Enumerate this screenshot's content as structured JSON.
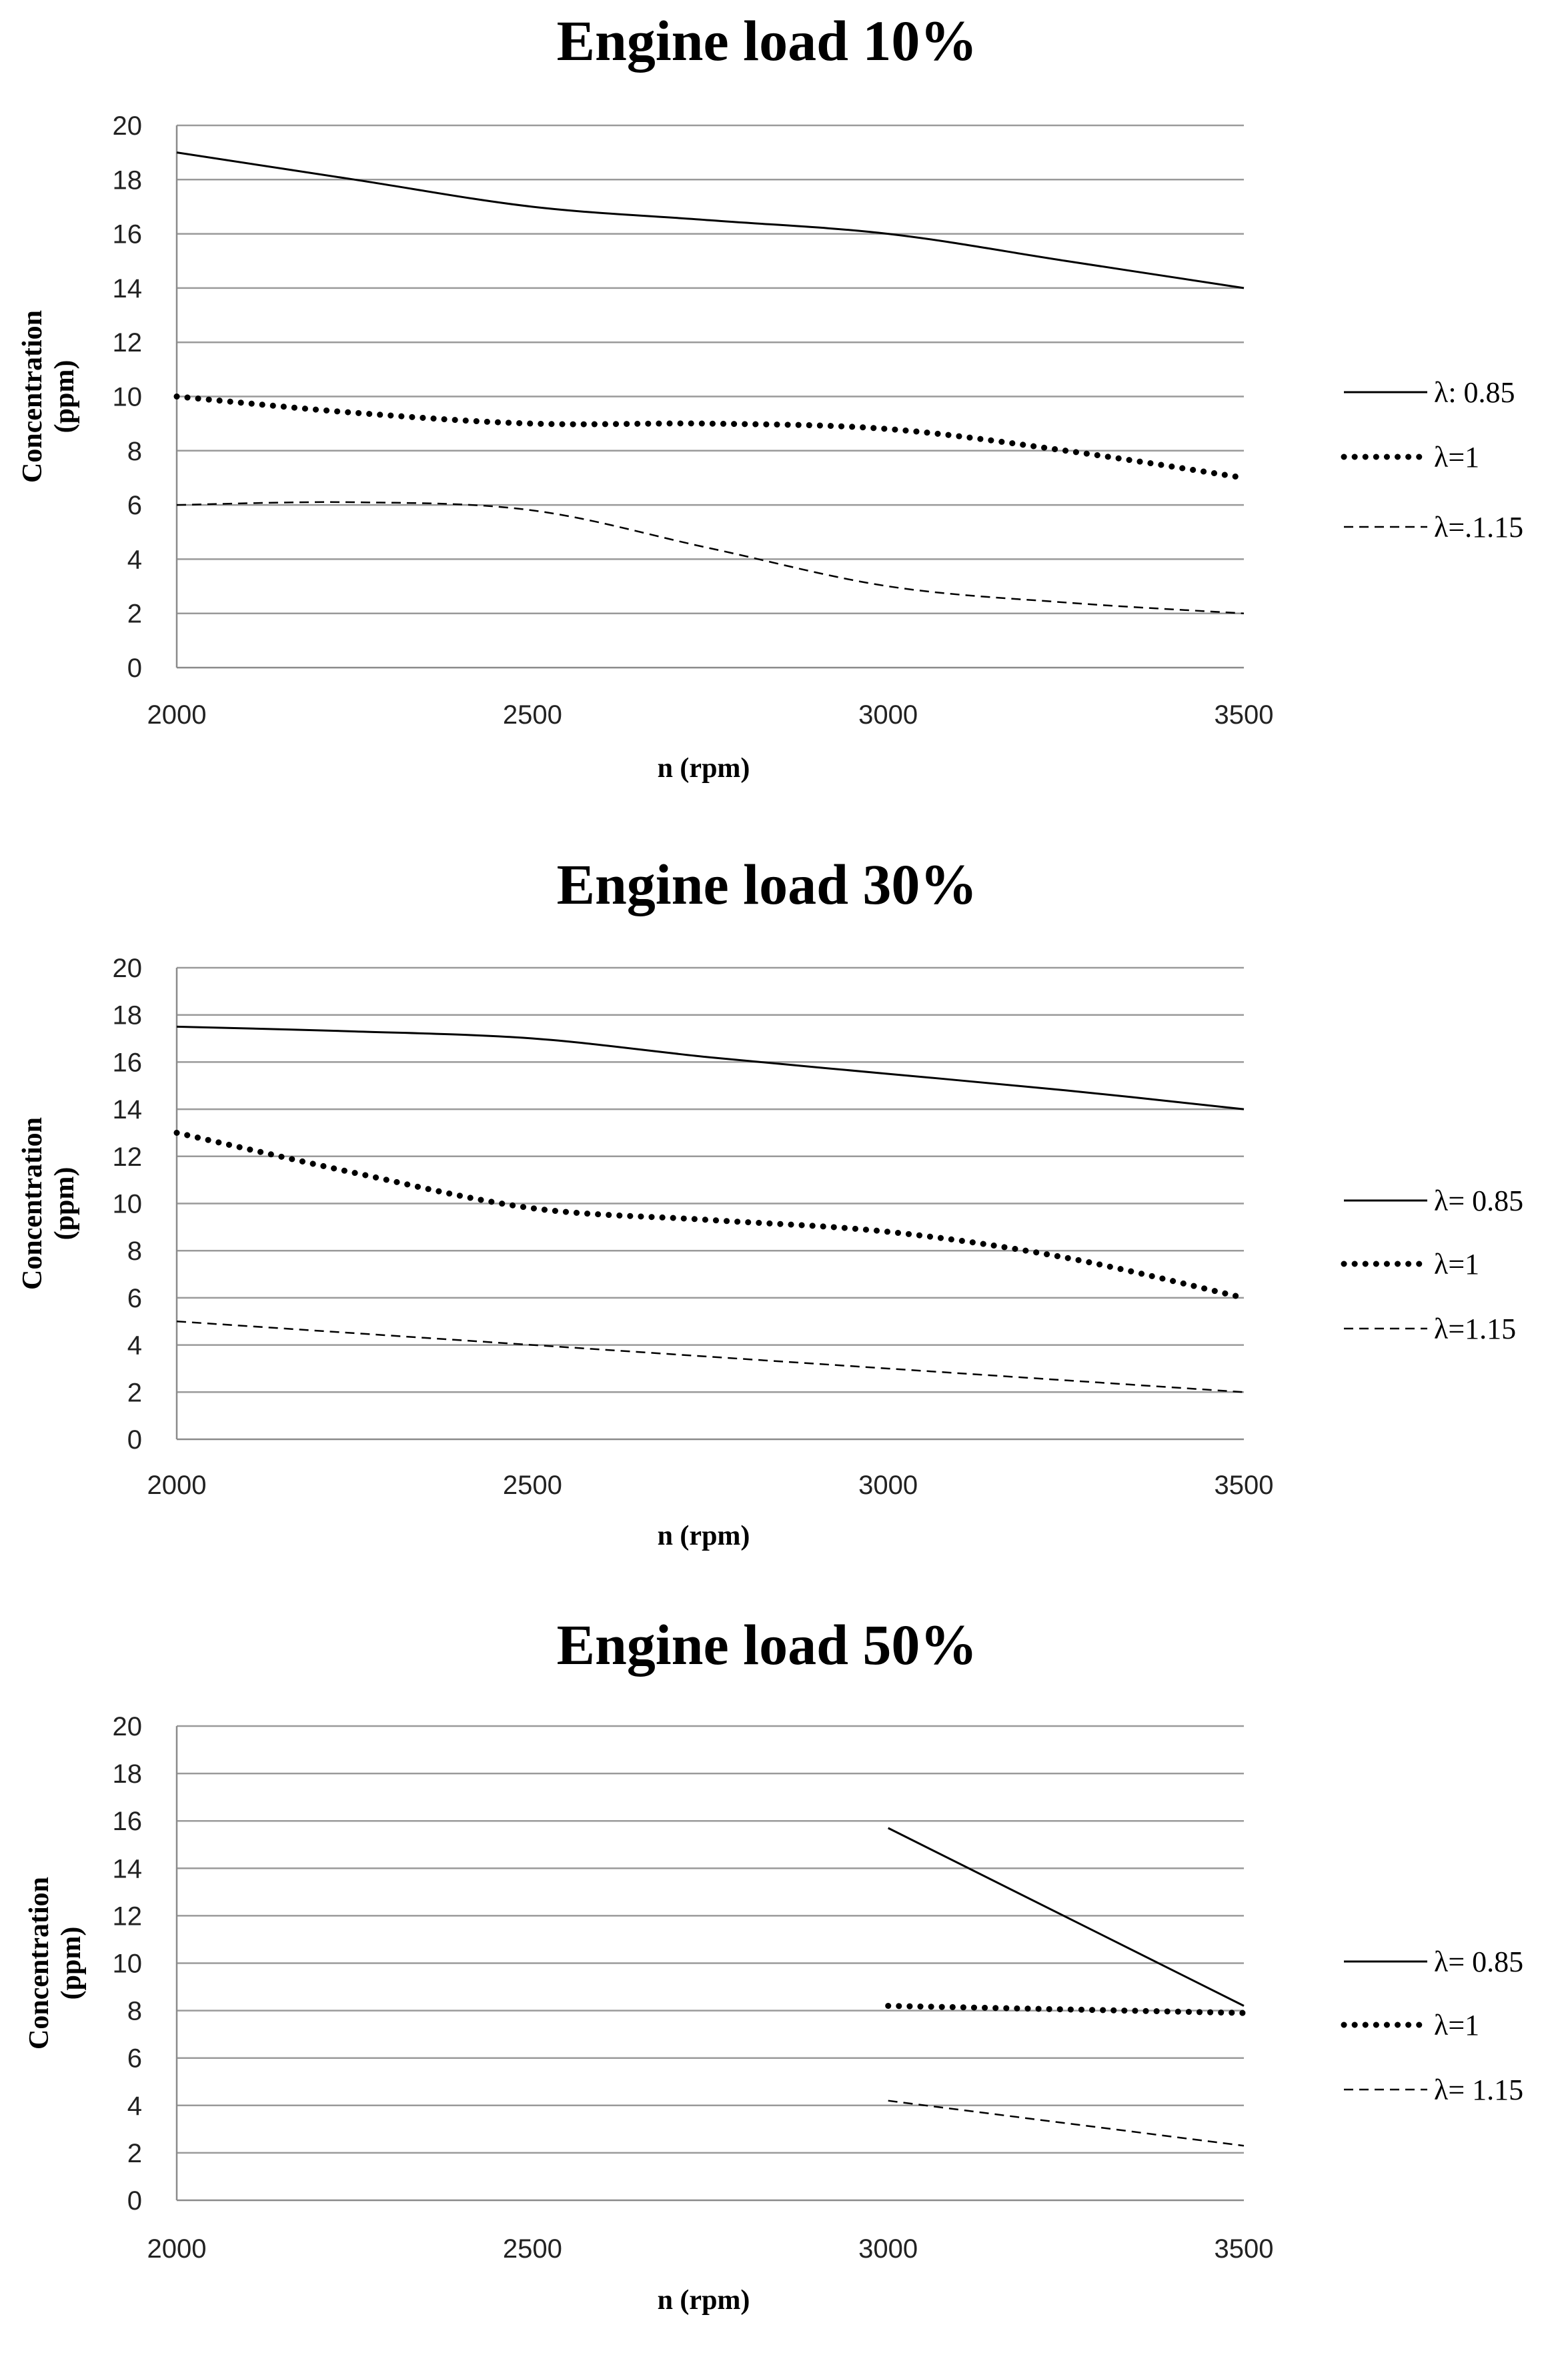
{
  "chart_data": [
    {
      "type": "line",
      "title": "Engine load 10%",
      "xlabel": "n (rpm)",
      "ylabel_lines": [
        "Concentration",
        "(ppm)"
      ],
      "ylim": [
        0,
        20
      ],
      "xlim": [
        2000,
        3500
      ],
      "yticks": [
        "0",
        "2",
        "4",
        "6",
        "8",
        "10",
        "12",
        "14",
        "16",
        "18",
        "20"
      ],
      "xticks": [
        "2000",
        "2500",
        "3000",
        "3500"
      ],
      "grid": true,
      "legend": "right",
      "series": [
        {
          "name": "λ: 0.85",
          "style": "solid",
          "points": [
            [
              2000,
              19
            ],
            [
              2250,
              18
            ],
            [
              2500,
              17
            ],
            [
              2750,
              16.5
            ],
            [
              3000,
              16
            ],
            [
              3250,
              15
            ],
            [
              3500,
              14
            ]
          ]
        },
        {
          "name": "λ=1",
          "style": "dotted",
          "points": [
            [
              2000,
              10
            ],
            [
              2250,
              9.4
            ],
            [
              2500,
              9
            ],
            [
              2750,
              9
            ],
            [
              3000,
              8.8
            ],
            [
              3250,
              8
            ],
            [
              3500,
              7
            ]
          ]
        },
        {
          "name": "λ=.1.15",
          "style": "dashed",
          "points": [
            [
              2000,
              6
            ],
            [
              2250,
              6.1
            ],
            [
              2500,
              5.8
            ],
            [
              2750,
              4.4
            ],
            [
              3000,
              3
            ],
            [
              3250,
              2.4
            ],
            [
              3500,
              2
            ]
          ]
        }
      ]
    },
    {
      "type": "line",
      "title": "Engine load 30%",
      "xlabel": "n (rpm)",
      "ylabel_lines": [
        "Concentration",
        "(ppm)"
      ],
      "ylim": [
        0,
        20
      ],
      "xlim": [
        2000,
        3500
      ],
      "yticks": [
        "0",
        "2",
        "4",
        "6",
        "8",
        "10",
        "12",
        "14",
        "16",
        "18",
        "20"
      ],
      "xticks": [
        "2000",
        "2500",
        "3000",
        "3500"
      ],
      "grid": true,
      "legend": "right",
      "series": [
        {
          "name": "λ= 0.85",
          "style": "solid",
          "points": [
            [
              2000,
              17.5
            ],
            [
              2250,
              17.3
            ],
            [
              2500,
              17
            ],
            [
              2750,
              16.2
            ],
            [
              3000,
              15.5
            ],
            [
              3250,
              14.8
            ],
            [
              3500,
              14
            ]
          ]
        },
        {
          "name": "λ=1",
          "style": "dotted",
          "points": [
            [
              2000,
              13
            ],
            [
              2250,
              11.3
            ],
            [
              2500,
              9.8
            ],
            [
              2750,
              9.3
            ],
            [
              3000,
              8.8
            ],
            [
              3250,
              7.7
            ],
            [
              3500,
              6
            ]
          ]
        },
        {
          "name": "λ=1.15",
          "style": "dashed",
          "points": [
            [
              2000,
              5
            ],
            [
              2250,
              4.5
            ],
            [
              2500,
              4
            ],
            [
              2750,
              3.5
            ],
            [
              3000,
              3
            ],
            [
              3250,
              2.5
            ],
            [
              3500,
              2
            ]
          ]
        }
      ]
    },
    {
      "type": "line",
      "title": "Engine load 50%",
      "xlabel": "n (rpm)",
      "ylabel_lines": [
        "Concentration",
        "(ppm)"
      ],
      "ylim": [
        0,
        20
      ],
      "xlim": [
        2000,
        3500
      ],
      "yticks": [
        "0",
        "2",
        "4",
        "6",
        "8",
        "10",
        "12",
        "14",
        "16",
        "18",
        "20"
      ],
      "xticks": [
        "2000",
        "2500",
        "3000",
        "3500"
      ],
      "grid": true,
      "legend": "right",
      "series": [
        {
          "name": "λ= 0.85",
          "style": "solid",
          "points": [
            [
              3000,
              15.7
            ],
            [
              3500,
              8.2
            ]
          ]
        },
        {
          "name": "λ=1",
          "style": "dotted",
          "points": [
            [
              3000,
              8.2
            ],
            [
              3500,
              7.9
            ]
          ]
        },
        {
          "name": "λ= 1.15",
          "style": "dashed",
          "points": [
            [
              3000,
              4.2
            ],
            [
              3500,
              2.3
            ]
          ]
        }
      ]
    }
  ]
}
